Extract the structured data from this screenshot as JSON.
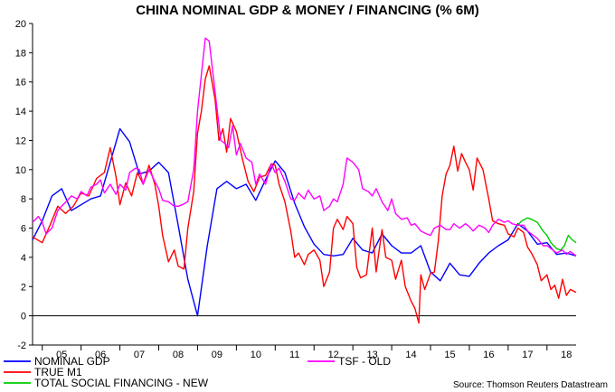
{
  "chart_data": {
    "type": "line",
    "title": "CHINA NOMINAL GDP & MONEY / FINANCING (% 6M)",
    "source": "Source: Thomson Reuters Datastream",
    "xlabel": "",
    "ylabel": "",
    "ylim": [
      -2,
      20
    ],
    "xlim": [
      2004.75,
      2018.75
    ],
    "y_ticks": [
      -2,
      0,
      2,
      4,
      6,
      8,
      10,
      12,
      14,
      16,
      18,
      20
    ],
    "x_tick_labels": [
      "05",
      "06",
      "07",
      "08",
      "09",
      "10",
      "11",
      "12",
      "13",
      "14",
      "15",
      "16",
      "17",
      "18"
    ],
    "x_tick_positions": [
      2005.5,
      2006.5,
      2007.5,
      2008.5,
      2009.5,
      2010.5,
      2011.5,
      2012.5,
      2013.5,
      2014.5,
      2015.5,
      2016.5,
      2017.5,
      2018.5
    ],
    "legend": [
      {
        "label": "NOMINAL GDP",
        "color": "#0000ff"
      },
      {
        "label": "TRUE M1",
        "color": "#ff0000"
      },
      {
        "label": "TOTAL SOCIAL FINANCING - NEW",
        "color": "#00cc00"
      },
      {
        "label": "TSF - OLD",
        "color": "#ff00ff"
      }
    ],
    "series": [
      {
        "name": "NOMINAL GDP",
        "color": "#0000ff",
        "points": [
          [
            2004.75,
            5.2
          ],
          [
            2005.0,
            6.5
          ],
          [
            2005.25,
            8.2
          ],
          [
            2005.5,
            8.7
          ],
          [
            2005.75,
            7.2
          ],
          [
            2006.0,
            7.6
          ],
          [
            2006.25,
            8.0
          ],
          [
            2006.5,
            8.2
          ],
          [
            2006.75,
            10.5
          ],
          [
            2007.0,
            12.8
          ],
          [
            2007.25,
            11.9
          ],
          [
            2007.5,
            9.7
          ],
          [
            2007.75,
            9.9
          ],
          [
            2008.0,
            10.5
          ],
          [
            2008.25,
            9.8
          ],
          [
            2008.5,
            6.2
          ],
          [
            2008.75,
            2.5
          ],
          [
            2009.0,
            0.0
          ],
          [
            2009.25,
            4.8
          ],
          [
            2009.5,
            8.7
          ],
          [
            2009.75,
            9.2
          ],
          [
            2010.0,
            8.7
          ],
          [
            2010.25,
            9.0
          ],
          [
            2010.5,
            7.9
          ],
          [
            2010.75,
            9.3
          ],
          [
            2011.0,
            10.6
          ],
          [
            2011.25,
            9.8
          ],
          [
            2011.5,
            7.7
          ],
          [
            2011.75,
            6.1
          ],
          [
            2012.0,
            4.9
          ],
          [
            2012.25,
            4.2
          ],
          [
            2012.5,
            4.1
          ],
          [
            2012.75,
            4.2
          ],
          [
            2013.0,
            5.3
          ],
          [
            2013.25,
            4.5
          ],
          [
            2013.5,
            4.3
          ],
          [
            2013.75,
            5.6
          ],
          [
            2014.0,
            4.8
          ],
          [
            2014.25,
            4.3
          ],
          [
            2014.5,
            4.3
          ],
          [
            2014.75,
            4.8
          ],
          [
            2015.0,
            3.0
          ],
          [
            2015.25,
            2.4
          ],
          [
            2015.5,
            3.6
          ],
          [
            2015.75,
            2.8
          ],
          [
            2016.0,
            2.7
          ],
          [
            2016.25,
            3.6
          ],
          [
            2016.5,
            4.3
          ],
          [
            2016.75,
            4.8
          ],
          [
            2017.0,
            5.2
          ],
          [
            2017.25,
            6.3
          ],
          [
            2017.5,
            5.8
          ],
          [
            2017.75,
            4.9
          ],
          [
            2018.0,
            5.0
          ],
          [
            2018.25,
            4.2
          ],
          [
            2018.5,
            4.3
          ],
          [
            2018.75,
            4.1
          ]
        ]
      },
      {
        "name": "TRUE M1",
        "color": "#ff0000",
        "points": [
          [
            2004.75,
            5.4
          ],
          [
            2005.0,
            5.0
          ],
          [
            2005.2,
            6.2
          ],
          [
            2005.4,
            7.5
          ],
          [
            2005.6,
            7.0
          ],
          [
            2005.8,
            7.5
          ],
          [
            2006.0,
            8.4
          ],
          [
            2006.2,
            8.2
          ],
          [
            2006.4,
            9.4
          ],
          [
            2006.6,
            9.8
          ],
          [
            2006.75,
            11.5
          ],
          [
            2006.9,
            9.5
          ],
          [
            2007.0,
            7.6
          ],
          [
            2007.15,
            9.1
          ],
          [
            2007.3,
            8.2
          ],
          [
            2007.45,
            9.8
          ],
          [
            2007.6,
            9.0
          ],
          [
            2007.75,
            10.3
          ],
          [
            2007.9,
            9.0
          ],
          [
            2008.0,
            7.5
          ],
          [
            2008.1,
            5.5
          ],
          [
            2008.25,
            3.7
          ],
          [
            2008.4,
            4.5
          ],
          [
            2008.5,
            3.4
          ],
          [
            2008.65,
            3.2
          ],
          [
            2008.75,
            6.0
          ],
          [
            2008.9,
            8.5
          ],
          [
            2009.0,
            12.5
          ],
          [
            2009.1,
            14.0
          ],
          [
            2009.2,
            16.2
          ],
          [
            2009.3,
            17.1
          ],
          [
            2009.45,
            14.8
          ],
          [
            2009.55,
            12.0
          ],
          [
            2009.65,
            12.8
          ],
          [
            2009.75,
            11.2
          ],
          [
            2009.85,
            13.5
          ],
          [
            2010.0,
            12.6
          ],
          [
            2010.15,
            10.8
          ],
          [
            2010.3,
            9.2
          ],
          [
            2010.45,
            8.5
          ],
          [
            2010.6,
            9.5
          ],
          [
            2010.75,
            9.6
          ],
          [
            2010.9,
            10.4
          ],
          [
            2011.0,
            10.3
          ],
          [
            2011.1,
            9.0
          ],
          [
            2011.25,
            7.8
          ],
          [
            2011.4,
            5.8
          ],
          [
            2011.5,
            4.0
          ],
          [
            2011.6,
            4.3
          ],
          [
            2011.75,
            3.5
          ],
          [
            2011.85,
            4.2
          ],
          [
            2012.0,
            4.5
          ],
          [
            2012.15,
            3.8
          ],
          [
            2012.25,
            2.0
          ],
          [
            2012.4,
            3.0
          ],
          [
            2012.5,
            6.0
          ],
          [
            2012.6,
            6.6
          ],
          [
            2012.75,
            5.9
          ],
          [
            2012.85,
            6.8
          ],
          [
            2013.0,
            6.3
          ],
          [
            2013.1,
            3.3
          ],
          [
            2013.2,
            2.6
          ],
          [
            2013.35,
            2.8
          ],
          [
            2013.5,
            6.0
          ],
          [
            2013.6,
            3.0
          ],
          [
            2013.75,
            5.9
          ],
          [
            2013.85,
            4.0
          ],
          [
            2014.0,
            3.8
          ],
          [
            2014.1,
            2.5
          ],
          [
            2014.25,
            3.8
          ],
          [
            2014.35,
            2.0
          ],
          [
            2014.5,
            1.0
          ],
          [
            2014.6,
            0.5
          ],
          [
            2014.7,
            -0.5
          ],
          [
            2014.75,
            2.8
          ],
          [
            2014.85,
            1.8
          ],
          [
            2015.0,
            2.9
          ],
          [
            2015.1,
            3.0
          ],
          [
            2015.2,
            5.1
          ],
          [
            2015.3,
            8.2
          ],
          [
            2015.4,
            9.7
          ],
          [
            2015.5,
            10.3
          ],
          [
            2015.6,
            11.6
          ],
          [
            2015.7,
            9.9
          ],
          [
            2015.8,
            11.1
          ],
          [
            2015.9,
            10.5
          ],
          [
            2016.0,
            10.0
          ],
          [
            2016.1,
            8.6
          ],
          [
            2016.2,
            10.8
          ],
          [
            2016.35,
            10.0
          ],
          [
            2016.5,
            8.0
          ],
          [
            2016.6,
            6.5
          ],
          [
            2016.75,
            6.3
          ],
          [
            2016.9,
            6.2
          ],
          [
            2017.0,
            5.6
          ],
          [
            2017.15,
            5.4
          ],
          [
            2017.25,
            6.0
          ],
          [
            2017.4,
            5.7
          ],
          [
            2017.5,
            4.7
          ],
          [
            2017.6,
            4.3
          ],
          [
            2017.75,
            3.5
          ],
          [
            2017.85,
            2.4
          ],
          [
            2018.0,
            2.8
          ],
          [
            2018.1,
            1.8
          ],
          [
            2018.2,
            2.1
          ],
          [
            2018.3,
            1.2
          ],
          [
            2018.4,
            2.5
          ],
          [
            2018.5,
            1.4
          ],
          [
            2018.6,
            1.8
          ],
          [
            2018.75,
            1.6
          ]
        ]
      },
      {
        "name": "TOTAL SOCIAL FINANCING - NEW",
        "color": "#00cc00",
        "points": [
          [
            2017.25,
            6.2
          ],
          [
            2017.35,
            6.5
          ],
          [
            2017.5,
            6.7
          ],
          [
            2017.6,
            6.6
          ],
          [
            2017.75,
            6.4
          ],
          [
            2017.9,
            5.8
          ],
          [
            2018.0,
            5.5
          ],
          [
            2018.1,
            5.0
          ],
          [
            2018.25,
            4.6
          ],
          [
            2018.35,
            4.5
          ],
          [
            2018.45,
            4.8
          ],
          [
            2018.55,
            5.5
          ],
          [
            2018.65,
            5.2
          ],
          [
            2018.75,
            5.0
          ]
        ]
      },
      {
        "name": "TSF - OLD",
        "color": "#ff00ff",
        "points": [
          [
            2004.75,
            6.4
          ],
          [
            2004.9,
            6.8
          ],
          [
            2005.0,
            6.4
          ],
          [
            2005.1,
            5.6
          ],
          [
            2005.25,
            6.0
          ],
          [
            2005.4,
            7.2
          ],
          [
            2005.5,
            7.5
          ],
          [
            2005.65,
            7.9
          ],
          [
            2005.75,
            8.2
          ],
          [
            2005.9,
            8.0
          ],
          [
            2006.0,
            8.5
          ],
          [
            2006.15,
            8.2
          ],
          [
            2006.25,
            8.8
          ],
          [
            2006.4,
            9.0
          ],
          [
            2006.5,
            9.3
          ],
          [
            2006.6,
            8.4
          ],
          [
            2006.75,
            9.0
          ],
          [
            2006.9,
            8.3
          ],
          [
            2007.0,
            9.0
          ],
          [
            2007.15,
            8.6
          ],
          [
            2007.25,
            9.8
          ],
          [
            2007.4,
            10.1
          ],
          [
            2007.5,
            10.0
          ],
          [
            2007.6,
            9.0
          ],
          [
            2007.75,
            10.0
          ],
          [
            2007.9,
            9.2
          ],
          [
            2008.0,
            8.7
          ],
          [
            2008.1,
            7.9
          ],
          [
            2008.25,
            7.8
          ],
          [
            2008.4,
            7.5
          ],
          [
            2008.5,
            7.5
          ],
          [
            2008.6,
            7.6
          ],
          [
            2008.75,
            7.8
          ],
          [
            2008.9,
            10.0
          ],
          [
            2009.0,
            14.0
          ],
          [
            2009.1,
            16.5
          ],
          [
            2009.2,
            19.0
          ],
          [
            2009.3,
            18.8
          ],
          [
            2009.4,
            16.5
          ],
          [
            2009.5,
            14.2
          ],
          [
            2009.6,
            12.0
          ],
          [
            2009.7,
            11.8
          ],
          [
            2009.8,
            11.5
          ],
          [
            2009.9,
            13.0
          ],
          [
            2010.0,
            11.0
          ],
          [
            2010.1,
            11.8
          ],
          [
            2010.25,
            10.8
          ],
          [
            2010.4,
            10.5
          ],
          [
            2010.5,
            9.0
          ],
          [
            2010.6,
            9.7
          ],
          [
            2010.75,
            9.0
          ],
          [
            2010.9,
            10.4
          ],
          [
            2011.0,
            9.8
          ],
          [
            2011.1,
            10.1
          ],
          [
            2011.25,
            9.2
          ],
          [
            2011.4,
            8.0
          ],
          [
            2011.5,
            7.9
          ],
          [
            2011.6,
            8.4
          ],
          [
            2011.75,
            8.0
          ],
          [
            2011.85,
            8.6
          ],
          [
            2012.0,
            8.0
          ],
          [
            2012.15,
            8.2
          ],
          [
            2012.25,
            7.2
          ],
          [
            2012.4,
            7.5
          ],
          [
            2012.5,
            8.0
          ],
          [
            2012.6,
            7.8
          ],
          [
            2012.75,
            9.0
          ],
          [
            2012.85,
            10.8
          ],
          [
            2013.0,
            10.5
          ],
          [
            2013.15,
            10.0
          ],
          [
            2013.25,
            8.7
          ],
          [
            2013.4,
            8.5
          ],
          [
            2013.5,
            8.2
          ],
          [
            2013.6,
            8.7
          ],
          [
            2013.75,
            7.8
          ],
          [
            2013.9,
            7.2
          ],
          [
            2014.0,
            8.0
          ],
          [
            2014.1,
            7.0
          ],
          [
            2014.25,
            6.6
          ],
          [
            2014.4,
            6.7
          ],
          [
            2014.5,
            6.2
          ],
          [
            2014.6,
            6.3
          ],
          [
            2014.75,
            5.8
          ],
          [
            2014.9,
            5.6
          ],
          [
            2015.0,
            5.5
          ],
          [
            2015.1,
            6.0
          ],
          [
            2015.25,
            6.2
          ],
          [
            2015.4,
            5.9
          ],
          [
            2015.5,
            5.9
          ],
          [
            2015.6,
            6.3
          ],
          [
            2015.75,
            6.0
          ],
          [
            2015.9,
            6.3
          ],
          [
            2016.0,
            6.1
          ],
          [
            2016.1,
            5.8
          ],
          [
            2016.25,
            6.2
          ],
          [
            2016.4,
            6.0
          ],
          [
            2016.5,
            5.7
          ],
          [
            2016.6,
            6.2
          ],
          [
            2016.75,
            6.6
          ],
          [
            2016.9,
            6.4
          ],
          [
            2017.0,
            6.5
          ],
          [
            2017.1,
            6.3
          ],
          [
            2017.25,
            6.2
          ],
          [
            2017.4,
            6.2
          ],
          [
            2017.5,
            5.8
          ],
          [
            2017.6,
            5.6
          ],
          [
            2017.75,
            5.3
          ],
          [
            2017.9,
            4.8
          ],
          [
            2018.0,
            4.8
          ],
          [
            2018.1,
            4.6
          ],
          [
            2018.25,
            4.3
          ],
          [
            2018.4,
            4.5
          ],
          [
            2018.5,
            4.2
          ],
          [
            2018.6,
            4.4
          ],
          [
            2018.75,
            4.1
          ]
        ]
      }
    ]
  }
}
